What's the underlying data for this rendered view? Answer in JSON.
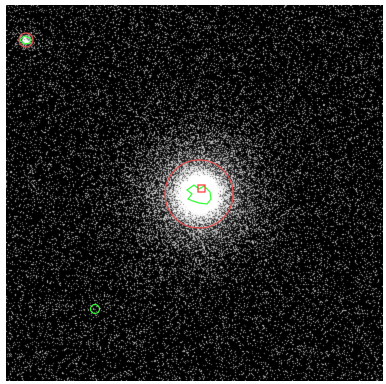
{
  "image": {
    "description_type": "x-ray-style astronomical image with source region overlays",
    "background_color": "#000000",
    "noise_color": "#bdbdbd",
    "source_glow_color": "#ffffff"
  },
  "overlays": {
    "source_region_color": "#e05050",
    "contour_color": "#33ff33",
    "marker_color": "#ff3333"
  },
  "sources": [
    {
      "name": "bright-central-source",
      "kind": "extended",
      "has_region_circle": true,
      "has_contour": true
    },
    {
      "name": "top-left-source",
      "kind": "point",
      "has_region_circle": true,
      "has_contour": true
    },
    {
      "name": "lower-left-source",
      "kind": "faint",
      "has_region_circle": false,
      "has_contour": true
    }
  ]
}
